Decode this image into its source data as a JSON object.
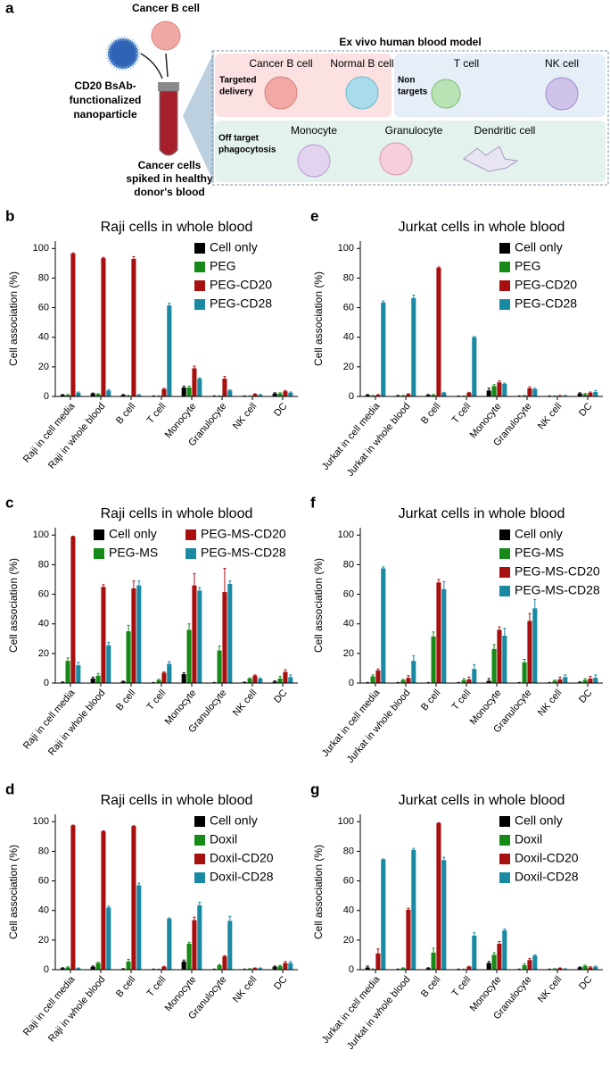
{
  "diagram": {
    "panel": "a",
    "cancer_cell_label": "Cancer B cell",
    "nanoparticle_label": [
      "CD20 BsAb-",
      "functionalized",
      "nanoparticle"
    ],
    "tube_label": [
      "Cancer cells",
      "spiked in healthy",
      "donor's blood"
    ],
    "model_title": "Ex vivo human blood model",
    "targeted": [
      "Targeted",
      "delivery"
    ],
    "cancer_b": "Cancer B cell",
    "normal_b": "Normal B cell",
    "non_targets": [
      "Non",
      "targets"
    ],
    "t_cell": "T cell",
    "nk_cell": "NK cell",
    "off_target": [
      "Off target",
      "phagocytosis"
    ],
    "monocyte": "Monocyte",
    "granulocyte": "Granulocyte",
    "dendritic": "Dendritic cell"
  },
  "chart_data": [
    {
      "type": "bar",
      "panel": "b",
      "title": "Raji cells in whole blood",
      "y_label": "Cell association (%)",
      "categories": [
        "Raji in cell media",
        "Raji in whole blood",
        "B cell",
        "T cell",
        "Monocyte",
        "Granulocyte",
        "NK cell",
        "DC"
      ],
      "ylim": [
        0,
        105
      ],
      "yticks": [
        0,
        20,
        40,
        60,
        80,
        100
      ],
      "legend_columns": 1,
      "series": [
        {
          "name": "Cell only",
          "color": "#000000",
          "values": [
            1,
            2,
            1,
            0.3,
            6,
            0.3,
            0.3,
            2
          ],
          "errors": [
            0.3,
            0.3,
            0.3,
            0.1,
            1,
            0.1,
            0.1,
            0.5
          ]
        },
        {
          "name": "PEG",
          "color": "#168a16",
          "values": [
            1,
            1.5,
            0.5,
            0.3,
            6,
            0.3,
            0.3,
            2
          ],
          "errors": [
            0.3,
            0.3,
            0.2,
            0.1,
            1,
            0.1,
            0.1,
            0.5
          ]
        },
        {
          "name": "PEG-CD20",
          "color": "#a80f0f",
          "values": [
            96.5,
            93.5,
            93,
            5,
            19,
            12,
            1.5,
            3.5
          ],
          "errors": [
            0.5,
            0.5,
            1.5,
            0.5,
            1.5,
            1.5,
            0.3,
            0.5
          ]
        },
        {
          "name": "PEG-CD28",
          "color": "#1a8aa3",
          "values": [
            2.5,
            4,
            1,
            61.5,
            12,
            4,
            1,
            2.5
          ],
          "errors": [
            0.5,
            0.5,
            0.3,
            1.5,
            0.5,
            0.5,
            0.3,
            0.5
          ]
        }
      ]
    },
    {
      "type": "bar",
      "panel": "c",
      "title": "Raji cells in whole blood",
      "y_label": "Cell association (%)",
      "categories": [
        "Raji in cell media",
        "Raji in whole blood",
        "B cell",
        "T cell",
        "Monocyte",
        "Granulocyte",
        "NK cell",
        "DC"
      ],
      "ylim": [
        0,
        105
      ],
      "yticks": [
        0,
        20,
        40,
        60,
        80,
        100
      ],
      "legend_columns": 2,
      "series": [
        {
          "name": "Cell only",
          "color": "#000000",
          "values": [
            0.5,
            3,
            1,
            0.3,
            6,
            0.3,
            0.5,
            1
          ],
          "errors": [
            0.3,
            1,
            0.3,
            0.1,
            1,
            0.1,
            0.2,
            0.5
          ]
        },
        {
          "name": "PEG-MS",
          "color": "#168a16",
          "values": [
            15,
            5,
            35,
            2,
            36,
            22,
            3,
            3
          ],
          "errors": [
            2,
            1.5,
            4,
            0.5,
            4,
            3,
            0.5,
            1.5
          ]
        },
        {
          "name": "PEG-MS-CD20",
          "color": "#a80f0f",
          "values": [
            99,
            65,
            64,
            7,
            66,
            61.5,
            5,
            7.5
          ],
          "errors": [
            0.3,
            1.5,
            5,
            0.5,
            8,
            16,
            0.5,
            1.5
          ]
        },
        {
          "name": "PEG-MS-CD28",
          "color": "#1a8aa3",
          "values": [
            12,
            25.5,
            66,
            13,
            62.5,
            67,
            3,
            4
          ],
          "errors": [
            2,
            2,
            3,
            1.5,
            2,
            2,
            0.5,
            1.5
          ]
        }
      ]
    },
    {
      "type": "bar",
      "panel": "d",
      "title": "Raji cells in whole blood",
      "y_label": "Cell association (%)",
      "categories": [
        "Raji in cell media",
        "Raji in whole blood",
        "B cell",
        "T cell",
        "Monocyte",
        "Granulocyte",
        "NK cell",
        "DC"
      ],
      "ylim": [
        0,
        105
      ],
      "yticks": [
        0,
        20,
        40,
        60,
        80,
        100
      ],
      "legend_columns": 1,
      "series": [
        {
          "name": "Cell only",
          "color": "#000000",
          "values": [
            1,
            2,
            0.5,
            0.3,
            5.5,
            0.3,
            0.3,
            2
          ],
          "errors": [
            0.3,
            0.5,
            0.2,
            0.1,
            1,
            0.1,
            0.1,
            0.5
          ]
        },
        {
          "name": "Doxil",
          "color": "#168a16",
          "values": [
            1.5,
            4.5,
            5.5,
            0.3,
            17.5,
            3,
            0.5,
            2.5
          ],
          "errors": [
            0.5,
            0.5,
            1.5,
            0.1,
            1,
            0.5,
            0.2,
            0.5
          ]
        },
        {
          "name": "Doxil-CD20",
          "color": "#a80f0f",
          "values": [
            97.5,
            93.5,
            97,
            2,
            33.5,
            9,
            1,
            4.5
          ],
          "errors": [
            0.2,
            0.3,
            0.3,
            0.3,
            2,
            0.5,
            0.2,
            1
          ]
        },
        {
          "name": "Doxil-CD28",
          "color": "#1a8aa3",
          "values": [
            1,
            42,
            57,
            34.5,
            43.5,
            33,
            1,
            4.5
          ],
          "errors": [
            0.2,
            1,
            1.5,
            0.5,
            2,
            3,
            0.2,
            1
          ]
        }
      ]
    },
    {
      "type": "bar",
      "panel": "e",
      "title": "Jurkat cells in whole blood",
      "y_label": "Cell association (%)",
      "categories": [
        "Jurkat in cell media",
        "Jurkat in whole blood",
        "B cell",
        "T cell",
        "Monocyte",
        "Granulocyte",
        "NK cell",
        "DC"
      ],
      "ylim": [
        0,
        105
      ],
      "yticks": [
        0,
        20,
        40,
        60,
        80,
        100
      ],
      "legend_columns": 1,
      "series": [
        {
          "name": "Cell only",
          "color": "#000000",
          "values": [
            1,
            0.5,
            1,
            0.2,
            4,
            0.3,
            0.3,
            2
          ],
          "errors": [
            0.3,
            0.2,
            0.3,
            0.1,
            1.5,
            0.1,
            0.1,
            0.5
          ]
        },
        {
          "name": "PEG",
          "color": "#168a16",
          "values": [
            0.5,
            0.5,
            1,
            0.2,
            7,
            0.5,
            0.3,
            1.5
          ],
          "errors": [
            0.2,
            0.2,
            0.3,
            0.1,
            1,
            0.2,
            0.1,
            0.5
          ]
        },
        {
          "name": "PEG-CD20",
          "color": "#a80f0f",
          "values": [
            1,
            1.5,
            87,
            2.5,
            9.5,
            5.5,
            0.5,
            2.5
          ],
          "errors": [
            0.3,
            0.3,
            0.5,
            0.3,
            1,
            1,
            0.2,
            0.5
          ]
        },
        {
          "name": "PEG-CD28",
          "color": "#1a8aa3",
          "values": [
            63.5,
            66.5,
            2.5,
            40,
            8.5,
            5,
            0.5,
            3
          ],
          "errors": [
            1,
            2,
            0.3,
            0.5,
            0.5,
            0.5,
            0.2,
            1
          ]
        }
      ]
    },
    {
      "type": "bar",
      "panel": "f",
      "title": "Jurkat cells in whole blood",
      "y_label": "Cell association (%)",
      "categories": [
        "Jurkat in cell media",
        "Jurkat in whole blood",
        "B cell",
        "T cell",
        "Monocyte",
        "Granulocyte",
        "NK cell",
        "DC"
      ],
      "ylim": [
        0,
        105
      ],
      "yticks": [
        0,
        20,
        40,
        60,
        80,
        100
      ],
      "legend_columns": 1,
      "series": [
        {
          "name": "Cell only",
          "color": "#000000",
          "values": [
            0.3,
            0.3,
            0.3,
            0.3,
            1.5,
            0.3,
            0.3,
            0.5
          ],
          "errors": [
            0.1,
            0.1,
            0.1,
            0.1,
            1.5,
            0.1,
            0.1,
            0.3
          ]
        },
        {
          "name": "PEG-MS",
          "color": "#168a16",
          "values": [
            4.5,
            2,
            31.5,
            2,
            23,
            14,
            1.5,
            2
          ],
          "errors": [
            1,
            0.5,
            3,
            1,
            3,
            2,
            0.5,
            1
          ]
        },
        {
          "name": "PEG-MS-CD20",
          "color": "#a80f0f",
          "values": [
            8.5,
            3.5,
            68,
            2.5,
            36,
            42,
            2.5,
            3
          ],
          "errors": [
            1,
            1.5,
            2,
            1.5,
            2,
            5,
            1.5,
            1.5
          ]
        },
        {
          "name": "PEG-MS-CD28",
          "color": "#1a8aa3",
          "values": [
            77.5,
            15,
            63.5,
            9.5,
            32,
            50.5,
            4,
            3.5
          ],
          "errors": [
            1,
            3.5,
            5,
            3,
            5,
            6,
            1.5,
            2
          ]
        }
      ]
    },
    {
      "type": "bar",
      "panel": "g",
      "title": "Jurkat cells in whole blood",
      "y_label": "Cell association (%)",
      "categories": [
        "Jurkat in cell media",
        "Jurkat in whole blood",
        "B cell",
        "T cell",
        "Monocyte",
        "Granulocyte",
        "NK cell",
        "DC"
      ],
      "ylim": [
        0,
        105
      ],
      "yticks": [
        0,
        20,
        40,
        60,
        80,
        100
      ],
      "legend_columns": 1,
      "series": [
        {
          "name": "Cell only",
          "color": "#000000",
          "values": [
            1.5,
            0.3,
            1,
            0.3,
            4.5,
            0.3,
            0.3,
            1.5
          ],
          "errors": [
            1,
            0.1,
            0.3,
            0.1,
            1,
            0.1,
            0.1,
            0.3
          ]
        },
        {
          "name": "Doxil",
          "color": "#168a16",
          "values": [
            0.3,
            1,
            11.5,
            0.3,
            10,
            3,
            0.5,
            2.5
          ],
          "errors": [
            0.2,
            0.3,
            3,
            0.1,
            1.5,
            1,
            0.2,
            0.5
          ]
        },
        {
          "name": "Doxil-CD20",
          "color": "#a80f0f",
          "values": [
            11,
            40.5,
            99,
            2,
            17.5,
            6.5,
            1,
            1.5
          ],
          "errors": [
            3,
            1,
            0.3,
            0.3,
            1.5,
            1,
            0.2,
            0.5
          ]
        },
        {
          "name": "Doxil-CD28",
          "color": "#1a8aa3",
          "values": [
            74.5,
            81,
            74,
            23,
            26.5,
            9.5,
            0.5,
            2
          ],
          "errors": [
            0.3,
            1,
            2,
            2,
            1,
            0.5,
            0.2,
            0.5
          ]
        }
      ]
    }
  ]
}
